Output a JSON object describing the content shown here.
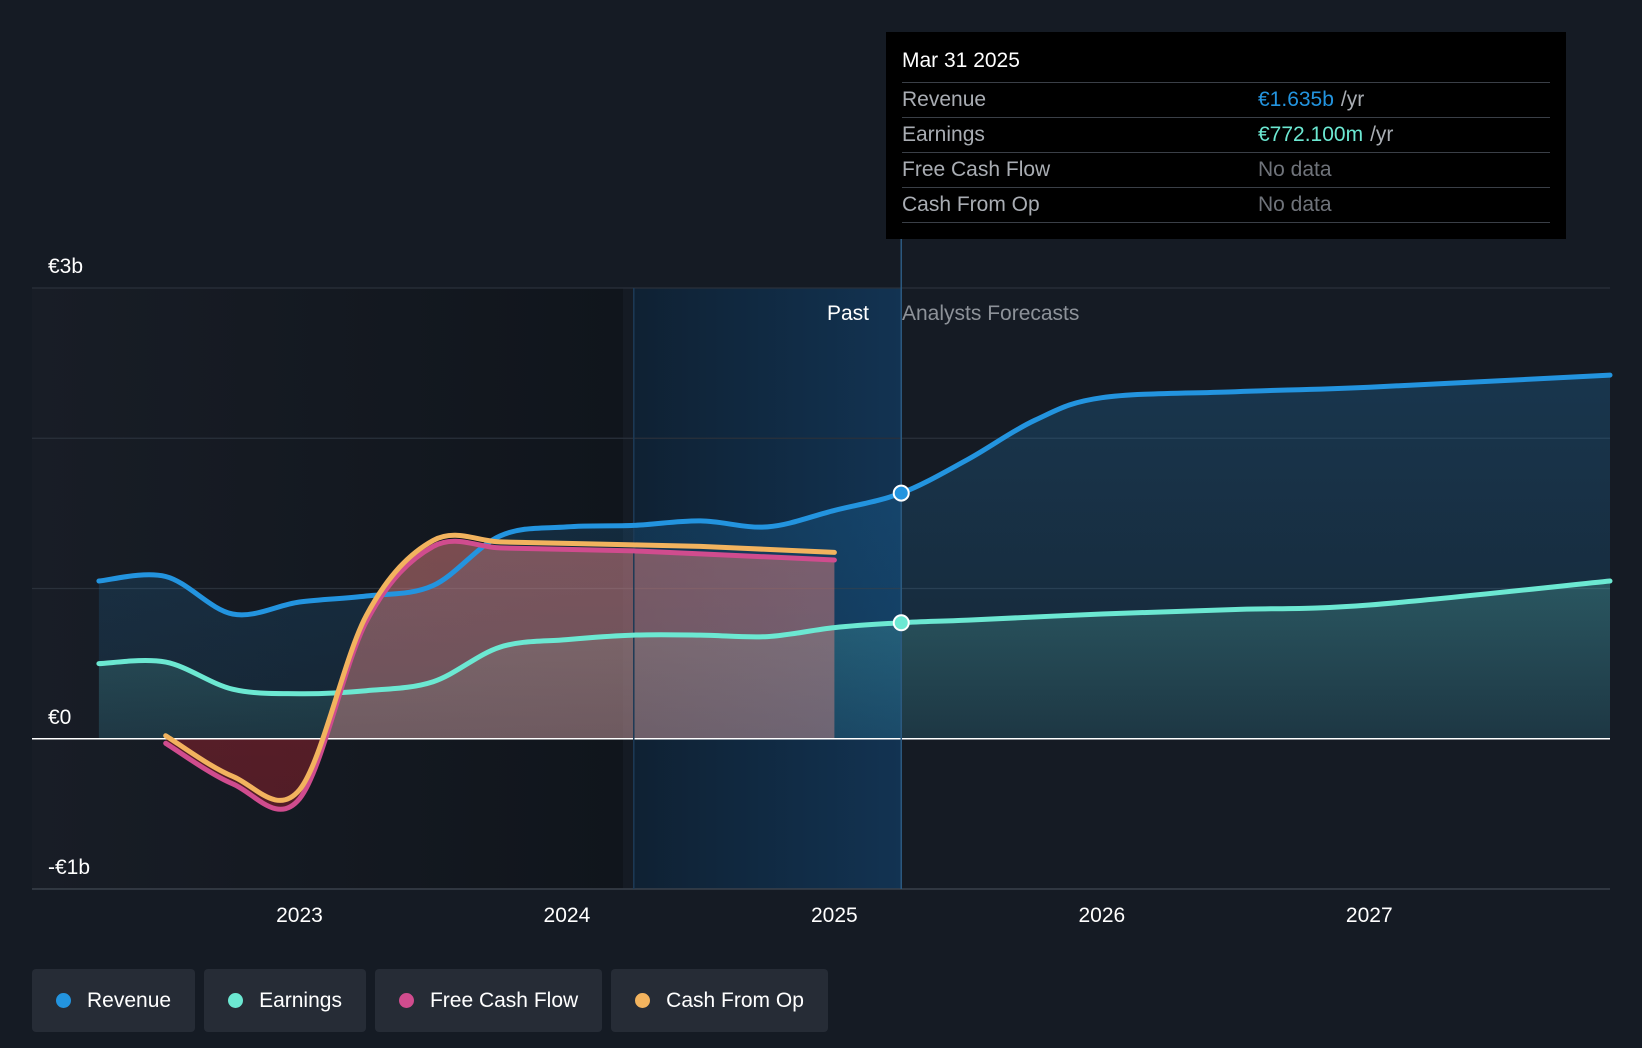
{
  "colors": {
    "revenue": "#2394df",
    "earnings": "#6ce8d2",
    "free_cash_flow": "#d04c8e",
    "cash_from_op": "#f2b35e",
    "no_data": "#6f737a"
  },
  "tooltip": {
    "date": "Mar 31 2025",
    "rows": [
      {
        "label": "Revenue",
        "value": "€1.635b",
        "unit": "/yr"
      },
      {
        "label": "Earnings",
        "value": "€772.100m",
        "unit": "/yr"
      },
      {
        "label": "Free Cash Flow",
        "value": "No data",
        "unit": ""
      },
      {
        "label": "Cash From Op",
        "value": "No data",
        "unit": ""
      }
    ]
  },
  "chart_data": {
    "type": "line",
    "y_unit": "€b",
    "ylim": [
      -1,
      3
    ],
    "xlim": [
      2022.0,
      2027.9
    ],
    "y_tick_labels": [
      {
        "value": 3,
        "label": "€3b"
      },
      {
        "value": 0,
        "label": "€0"
      },
      {
        "value": -1,
        "label": "-€1b"
      }
    ],
    "x_tick_labels": [
      {
        "value": 2023,
        "label": "2023"
      },
      {
        "value": 2024,
        "label": "2024"
      },
      {
        "value": 2025,
        "label": "2025"
      },
      {
        "value": 2026,
        "label": "2026"
      },
      {
        "value": 2027,
        "label": "2027"
      }
    ],
    "past_label": "Past",
    "forecast_label": "Analysts Forecasts",
    "divider_x": 2025.25,
    "highlight_start_x": 2024.25,
    "series": [
      {
        "name": "Revenue",
        "x": [
          2022.25,
          2022.5,
          2022.75,
          2023.0,
          2023.25,
          2023.5,
          2023.75,
          2024.0,
          2024.25,
          2024.5,
          2024.75,
          2025.0,
          2025.25,
          2025.5,
          2025.75,
          2026.0,
          2026.5,
          2027.0,
          2027.9
        ],
        "y": [
          1.05,
          1.08,
          0.83,
          0.91,
          0.95,
          1.02,
          1.35,
          1.41,
          1.42,
          1.45,
          1.41,
          1.52,
          1.635,
          1.86,
          2.12,
          2.27,
          2.31,
          2.34,
          2.42
        ]
      },
      {
        "name": "Earnings",
        "x": [
          2022.25,
          2022.5,
          2022.75,
          2023.0,
          2023.25,
          2023.5,
          2023.75,
          2024.0,
          2024.25,
          2024.5,
          2024.75,
          2025.0,
          2025.25,
          2025.5,
          2026.0,
          2026.5,
          2027.0,
          2027.9
        ],
        "y": [
          0.5,
          0.51,
          0.33,
          0.3,
          0.32,
          0.38,
          0.61,
          0.66,
          0.69,
          0.69,
          0.68,
          0.74,
          0.772,
          0.79,
          0.83,
          0.86,
          0.89,
          1.05
        ]
      },
      {
        "name": "Free Cash Flow",
        "x": [
          2022.5,
          2022.75,
          2023.0,
          2023.25,
          2023.5,
          2023.75,
          2024.0,
          2024.25,
          2024.5,
          2024.75,
          2025.0
        ],
        "y": [
          -0.03,
          -0.3,
          -0.4,
          0.78,
          1.28,
          1.27,
          1.26,
          1.25,
          1.23,
          1.21,
          1.19
        ]
      },
      {
        "name": "Cash From Op",
        "x": [
          2022.5,
          2022.75,
          2023.0,
          2023.25,
          2023.5,
          2023.75,
          2024.0,
          2024.25,
          2024.5,
          2024.75,
          2025.0
        ],
        "y": [
          0.02,
          -0.25,
          -0.34,
          0.82,
          1.32,
          1.31,
          1.3,
          1.29,
          1.28,
          1.26,
          1.24
        ]
      }
    ],
    "highlight_points": [
      {
        "series": "Revenue",
        "x": 2025.25,
        "y": 1.635
      },
      {
        "series": "Earnings",
        "x": 2025.25,
        "y": 0.772
      }
    ]
  },
  "legend": [
    {
      "label": "Revenue",
      "color": "#2394df"
    },
    {
      "label": "Earnings",
      "color": "#6ce8d2"
    },
    {
      "label": "Free Cash Flow",
      "color": "#d04c8e"
    },
    {
      "label": "Cash From Op",
      "color": "#f2b35e"
    }
  ]
}
